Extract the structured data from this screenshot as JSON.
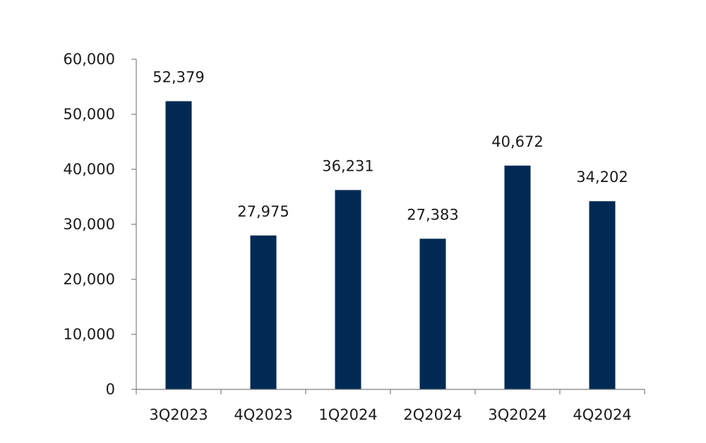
{
  "chart_data": {
    "type": "bar",
    "title": "",
    "xlabel": "",
    "ylabel": "",
    "categories": [
      "3Q2023",
      "4Q2023",
      "1Q2024",
      "2Q2024",
      "3Q2024",
      "4Q2024"
    ],
    "values": [
      52379,
      27975,
      36231,
      27383,
      40672,
      34202
    ],
    "data_labels": [
      "52,379",
      "27,975",
      "36,231",
      "27,383",
      "40,672",
      "34,202"
    ],
    "ylim": [
      0,
      60000
    ],
    "yticks": [
      0,
      10000,
      20000,
      30000,
      40000,
      50000,
      60000
    ],
    "ytick_labels": [
      "0",
      "10,000",
      "20,000",
      "30,000",
      "40,000",
      "50,000",
      "60,000"
    ],
    "grid": false,
    "legend": "none",
    "bar_color": "#002a54"
  }
}
